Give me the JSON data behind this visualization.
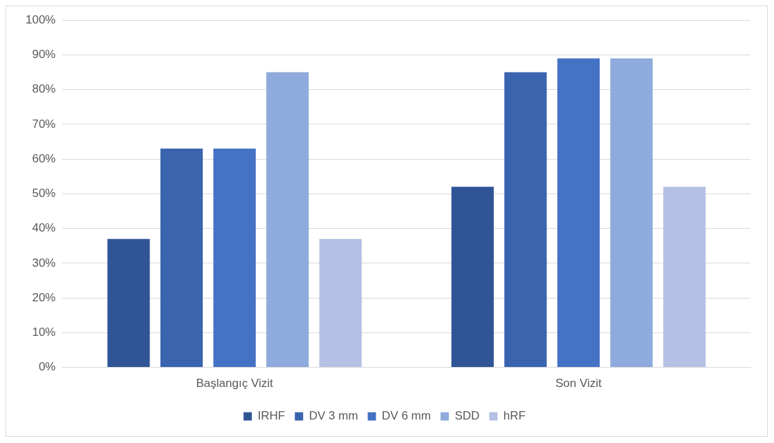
{
  "chart_data": {
    "type": "bar",
    "categories": [
      "Başlangıç Vizit",
      "Son Vizit"
    ],
    "series": [
      {
        "name": "IRHF",
        "color": "#2f5597",
        "values": [
          37,
          52
        ]
      },
      {
        "name": "DV 3 mm",
        "color": "#3a64ae",
        "values": [
          63,
          85
        ]
      },
      {
        "name": "DV 6 mm",
        "color": "#4472c4",
        "values": [
          63,
          89
        ]
      },
      {
        "name": "SDD",
        "color": "#8faadc",
        "values": [
          85,
          89
        ]
      },
      {
        "name": "hRF",
        "color": "#b4c0e4",
        "values": [
          37,
          52
        ]
      }
    ],
    "ylim": [
      0,
      100
    ],
    "yticks": [
      {
        "value": 0,
        "label": "0%"
      },
      {
        "value": 10,
        "label": "10%"
      },
      {
        "value": 20,
        "label": "20%"
      },
      {
        "value": 30,
        "label": "30%"
      },
      {
        "value": 40,
        "label": "40%"
      },
      {
        "value": 50,
        "label": "50%"
      },
      {
        "value": 60,
        "label": "60%"
      },
      {
        "value": 70,
        "label": "70%"
      },
      {
        "value": 80,
        "label": "80%"
      },
      {
        "value": 90,
        "label": "90%"
      },
      {
        "value": 100,
        "label": "100%"
      }
    ],
    "grid": "y",
    "legend": "bottom"
  }
}
